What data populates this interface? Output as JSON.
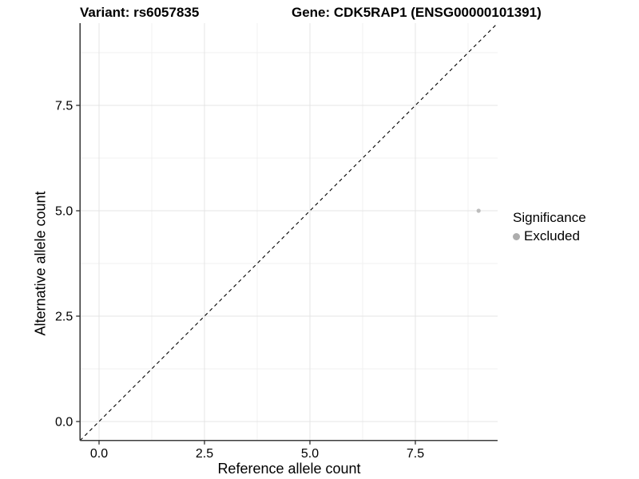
{
  "chart_data": {
    "type": "scatter",
    "title_variant": "Variant: rs6057835",
    "title_gene": "Gene: CDK5RAP1 (ENSG00000101391)",
    "xlabel": "Reference allele count",
    "ylabel": "Alternative allele count",
    "x_tick_labels": [
      "0.0",
      "2.5",
      "5.0",
      "7.5"
    ],
    "y_tick_labels": [
      "0.0",
      "2.5",
      "5.0",
      "7.5"
    ],
    "x_tick_values": [
      0,
      2.5,
      5,
      7.5
    ],
    "y_tick_values": [
      0,
      2.5,
      5,
      7.5
    ],
    "xlim": [
      -0.45,
      9.45
    ],
    "ylim": [
      -0.45,
      9.45
    ],
    "points": [
      {
        "x": 9,
        "y": 5,
        "group": "Excluded"
      }
    ],
    "reference_line": {
      "type": "identity",
      "slope": 1,
      "intercept": 0,
      "style": "dashed",
      "color": "#000000"
    },
    "legend": {
      "title": "Significance",
      "position": "right",
      "entries": [
        {
          "label": "Excluded",
          "color": "#adadad"
        }
      ]
    },
    "colors": {
      "point": "#bdbdbd",
      "grid_major": "#e4e4e4",
      "grid_minor": "#f1f1f1",
      "axis": "#3c3c3c",
      "text": "#000000"
    },
    "grid": "major+minor"
  }
}
